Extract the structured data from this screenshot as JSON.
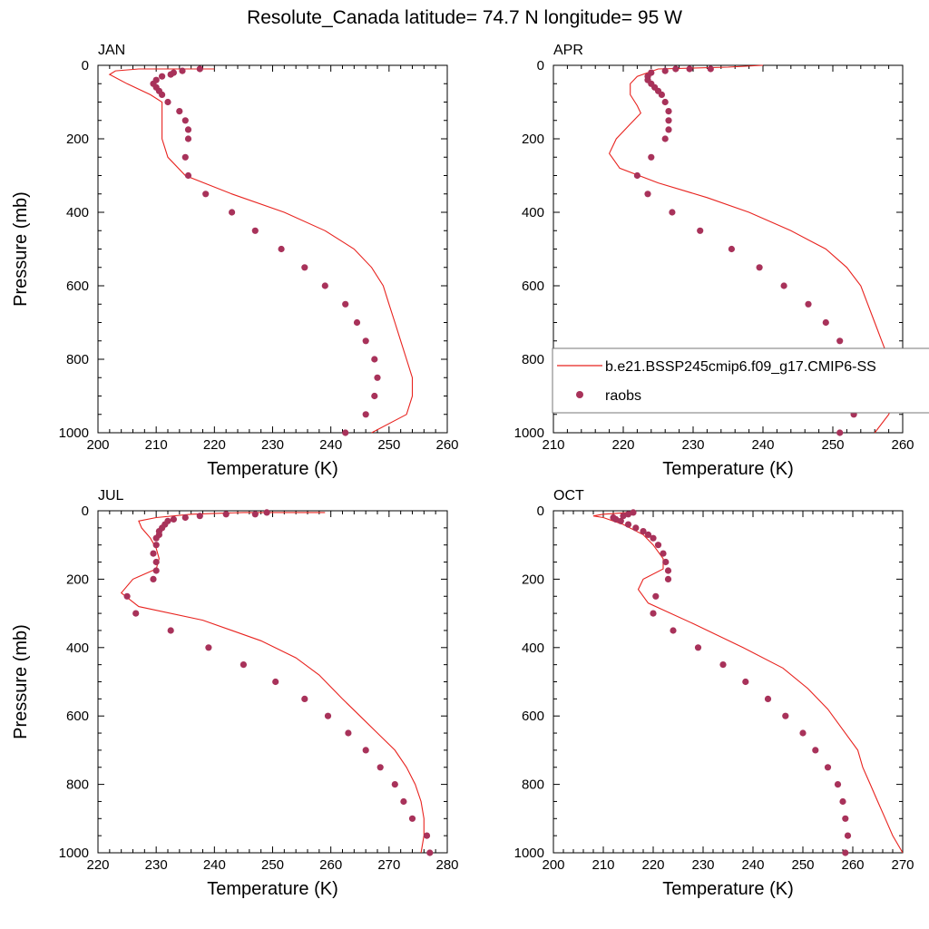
{
  "title": "Resolute_Canada  latitude= 74.7 N longitude= 95 W",
  "legend": {
    "placement": "inside APR panel, lower-right",
    "model_label": "b.e21.BSSP245cmip6.f09_g17.CMIP6-SS",
    "obs_label": "raobs"
  },
  "colors": {
    "model": "#e8231f",
    "obs": "#a8325a",
    "axis": "#000000",
    "legend_border": "#777777"
  },
  "chart_data": [
    {
      "type": "line",
      "panel": "JAN",
      "xlabel": "Temperature (K)",
      "ylabel": "Pressure (mb)",
      "xlim": [
        200,
        260
      ],
      "ylim": [
        1000,
        0
      ],
      "xticks": [
        200,
        210,
        220,
        230,
        240,
        250,
        260
      ],
      "yticks": [
        0,
        200,
        400,
        600,
        800,
        1000
      ],
      "series": [
        {
          "name": "b.e21.BSSP245cmip6.f09_g17.CMIP6-SS",
          "kind": "line",
          "points": [
            [
              220,
              10
            ],
            [
              207,
              10
            ],
            [
              203,
              15
            ],
            [
              202,
              25
            ],
            [
              205,
              50
            ],
            [
              209,
              80
            ],
            [
              211,
              100
            ],
            [
              211,
              150
            ],
            [
              211,
              200
            ],
            [
              212,
              250
            ],
            [
              215,
              300
            ],
            [
              223,
              350
            ],
            [
              232,
              400
            ],
            [
              239,
              450
            ],
            [
              244,
              500
            ],
            [
              247,
              550
            ],
            [
              249,
              600
            ],
            [
              250,
              650
            ],
            [
              251,
              700
            ],
            [
              252,
              750
            ],
            [
              253,
              800
            ],
            [
              254,
              850
            ],
            [
              254,
              900
            ],
            [
              253,
              950
            ],
            [
              247,
              1000
            ]
          ]
        },
        {
          "name": "raobs",
          "kind": "scatter",
          "points": [
            [
              217.5,
              10
            ],
            [
              214.5,
              15
            ],
            [
              213,
              20
            ],
            [
              212.5,
              25
            ],
            [
              211,
              30
            ],
            [
              210,
              40
            ],
            [
              209.5,
              50
            ],
            [
              210,
              60
            ],
            [
              210.5,
              70
            ],
            [
              211,
              80
            ],
            [
              212,
              100
            ],
            [
              214,
              125
            ],
            [
              215,
              150
            ],
            [
              215.5,
              175
            ],
            [
              215.5,
              200
            ],
            [
              215,
              250
            ],
            [
              215.5,
              300
            ],
            [
              218.5,
              350
            ],
            [
              223,
              400
            ],
            [
              227,
              450
            ],
            [
              231.5,
              500
            ],
            [
              235.5,
              550
            ],
            [
              239,
              600
            ],
            [
              242.5,
              650
            ],
            [
              244.5,
              700
            ],
            [
              246,
              750
            ],
            [
              247.5,
              800
            ],
            [
              248,
              850
            ],
            [
              247.5,
              900
            ],
            [
              246,
              950
            ],
            [
              242.5,
              1000
            ]
          ]
        }
      ]
    },
    {
      "type": "line",
      "panel": "APR",
      "xlabel": "Temperature (K)",
      "ylabel": "",
      "xlim": [
        210,
        260
      ],
      "ylim": [
        1000,
        0
      ],
      "xticks": [
        210,
        220,
        230,
        240,
        250,
        260
      ],
      "yticks": [
        0,
        200,
        400,
        600,
        800,
        1000
      ],
      "series": [
        {
          "name": "b.e21.BSSP245cmip6.f09_g17.CMIP6-SS",
          "kind": "line",
          "points": [
            [
              240,
              0
            ],
            [
              235,
              5
            ],
            [
              225,
              10
            ],
            [
              222,
              30
            ],
            [
              221,
              50
            ],
            [
              221,
              80
            ],
            [
              222,
              110
            ],
            [
              222.5,
              130
            ],
            [
              221,
              160
            ],
            [
              219,
              200
            ],
            [
              218,
              240
            ],
            [
              219.5,
              280
            ],
            [
              225,
              320
            ],
            [
              232,
              360
            ],
            [
              238,
              400
            ],
            [
              244,
              450
            ],
            [
              249,
              500
            ],
            [
              252,
              550
            ],
            [
              254,
              600
            ],
            [
              255,
              650
            ],
            [
              256,
              700
            ],
            [
              257,
              750
            ],
            [
              258,
              800
            ],
            [
              259,
              850
            ],
            [
              259,
              900
            ],
            [
              258,
              950
            ],
            [
              256,
              1000
            ]
          ]
        },
        {
          "name": "raobs",
          "kind": "scatter",
          "points": [
            [
              232.5,
              10
            ],
            [
              229.5,
              10
            ],
            [
              227.5,
              10
            ],
            [
              226,
              15
            ],
            [
              224,
              20
            ],
            [
              223.5,
              30
            ],
            [
              223.5,
              40
            ],
            [
              224,
              50
            ],
            [
              224.5,
              60
            ],
            [
              225,
              70
            ],
            [
              225.5,
              80
            ],
            [
              226,
              100
            ],
            [
              226.5,
              125
            ],
            [
              226.5,
              150
            ],
            [
              226.5,
              175
            ],
            [
              226,
              200
            ],
            [
              224,
              250
            ],
            [
              222,
              300
            ],
            [
              223.5,
              350
            ],
            [
              227,
              400
            ],
            [
              231,
              450
            ],
            [
              235.5,
              500
            ],
            [
              239.5,
              550
            ],
            [
              243,
              600
            ],
            [
              246.5,
              650
            ],
            [
              249,
              700
            ],
            [
              251,
              750
            ],
            [
              252.5,
              800
            ],
            [
              254,
              850
            ],
            [
              254.5,
              900
            ],
            [
              253,
              950
            ],
            [
              251,
              1000
            ]
          ]
        }
      ]
    },
    {
      "type": "line",
      "panel": "JUL",
      "xlabel": "Temperature (K)",
      "ylabel": "Pressure (mb)",
      "xlim": [
        220,
        280
      ],
      "ylim": [
        1000,
        0
      ],
      "xticks": [
        220,
        230,
        240,
        250,
        260,
        270,
        280
      ],
      "yticks": [
        0,
        200,
        400,
        600,
        800,
        1000
      ],
      "series": [
        {
          "name": "b.e21.BSSP245cmip6.f09_g17.CMIP6-SS",
          "kind": "line",
          "points": [
            [
              259,
              5
            ],
            [
              245,
              5
            ],
            [
              236,
              10
            ],
            [
              230,
              20
            ],
            [
              227,
              30
            ],
            [
              227.5,
              50
            ],
            [
              229,
              80
            ],
            [
              230,
              110
            ],
            [
              230.5,
              140
            ],
            [
              230,
              170
            ],
            [
              226,
              200
            ],
            [
              224,
              240
            ],
            [
              227,
              280
            ],
            [
              238,
              320
            ],
            [
              248,
              380
            ],
            [
              254,
              430
            ],
            [
              258,
              480
            ],
            [
              262,
              550
            ],
            [
              265,
              600
            ],
            [
              268,
              650
            ],
            [
              271,
              700
            ],
            [
              273,
              750
            ],
            [
              274.5,
              800
            ],
            [
              275.5,
              850
            ],
            [
              276,
              900
            ],
            [
              276,
              950
            ],
            [
              275.5,
              1000
            ]
          ]
        },
        {
          "name": "raobs",
          "kind": "scatter",
          "points": [
            [
              249,
              5
            ],
            [
              247,
              10
            ],
            [
              242,
              10
            ],
            [
              237.5,
              15
            ],
            [
              235,
              20
            ],
            [
              233,
              25
            ],
            [
              232,
              30
            ],
            [
              231.5,
              40
            ],
            [
              231,
              50
            ],
            [
              230.5,
              60
            ],
            [
              230.5,
              70
            ],
            [
              230,
              80
            ],
            [
              230,
              100
            ],
            [
              229.5,
              125
            ],
            [
              230,
              150
            ],
            [
              230,
              175
            ],
            [
              229.5,
              200
            ],
            [
              225,
              250
            ],
            [
              226.5,
              300
            ],
            [
              232.5,
              350
            ],
            [
              239,
              400
            ],
            [
              245,
              450
            ],
            [
              250.5,
              500
            ],
            [
              255.5,
              550
            ],
            [
              259.5,
              600
            ],
            [
              263,
              650
            ],
            [
              266,
              700
            ],
            [
              268.5,
              750
            ],
            [
              271,
              800
            ],
            [
              272.5,
              850
            ],
            [
              274,
              900
            ],
            [
              276.5,
              950
            ],
            [
              277,
              1000
            ]
          ]
        }
      ]
    },
    {
      "type": "line",
      "panel": "OCT",
      "xlabel": "Temperature (K)",
      "ylabel": "",
      "xlim": [
        200,
        270
      ],
      "ylim": [
        1000,
        0
      ],
      "xticks": [
        200,
        210,
        220,
        230,
        240,
        250,
        260,
        270
      ],
      "yticks": [
        0,
        200,
        400,
        600,
        800,
        1000
      ],
      "series": [
        {
          "name": "b.e21.BSSP245cmip6.f09_g17.CMIP6-SS",
          "kind": "line",
          "points": [
            [
              215,
              5
            ],
            [
              210,
              10
            ],
            [
              208,
              15
            ],
            [
              210,
              20
            ],
            [
              214,
              40
            ],
            [
              218,
              70
            ],
            [
              220,
              100
            ],
            [
              222,
              140
            ],
            [
              222,
              170
            ],
            [
              218,
              200
            ],
            [
              217,
              230
            ],
            [
              219,
              270
            ],
            [
              228,
              330
            ],
            [
              238,
              400
            ],
            [
              246,
              460
            ],
            [
              251,
              520
            ],
            [
              255,
              580
            ],
            [
              258,
              640
            ],
            [
              261,
              700
            ],
            [
              262,
              750
            ],
            [
              263.5,
              800
            ],
            [
              265,
              850
            ],
            [
              266.5,
              900
            ],
            [
              268,
              950
            ],
            [
              270,
              1000
            ]
          ]
        },
        {
          "name": "raobs",
          "kind": "scatter",
          "points": [
            [
              216,
              5
            ],
            [
              215,
              10
            ],
            [
              214,
              15
            ],
            [
              212,
              20
            ],
            [
              212.5,
              25
            ],
            [
              213.5,
              30
            ],
            [
              215,
              40
            ],
            [
              216.5,
              50
            ],
            [
              218,
              60
            ],
            [
              219,
              70
            ],
            [
              220,
              80
            ],
            [
              221,
              100
            ],
            [
              222,
              125
            ],
            [
              222.5,
              150
            ],
            [
              223,
              175
            ],
            [
              223,
              200
            ],
            [
              220.5,
              250
            ],
            [
              220,
              300
            ],
            [
              224,
              350
            ],
            [
              229,
              400
            ],
            [
              234,
              450
            ],
            [
              238.5,
              500
            ],
            [
              243,
              550
            ],
            [
              246.5,
              600
            ],
            [
              250,
              650
            ],
            [
              252.5,
              700
            ],
            [
              255,
              750
            ],
            [
              257,
              800
            ],
            [
              258,
              850
            ],
            [
              258.5,
              900
            ],
            [
              259,
              950
            ],
            [
              258.5,
              1000
            ]
          ]
        }
      ]
    }
  ]
}
